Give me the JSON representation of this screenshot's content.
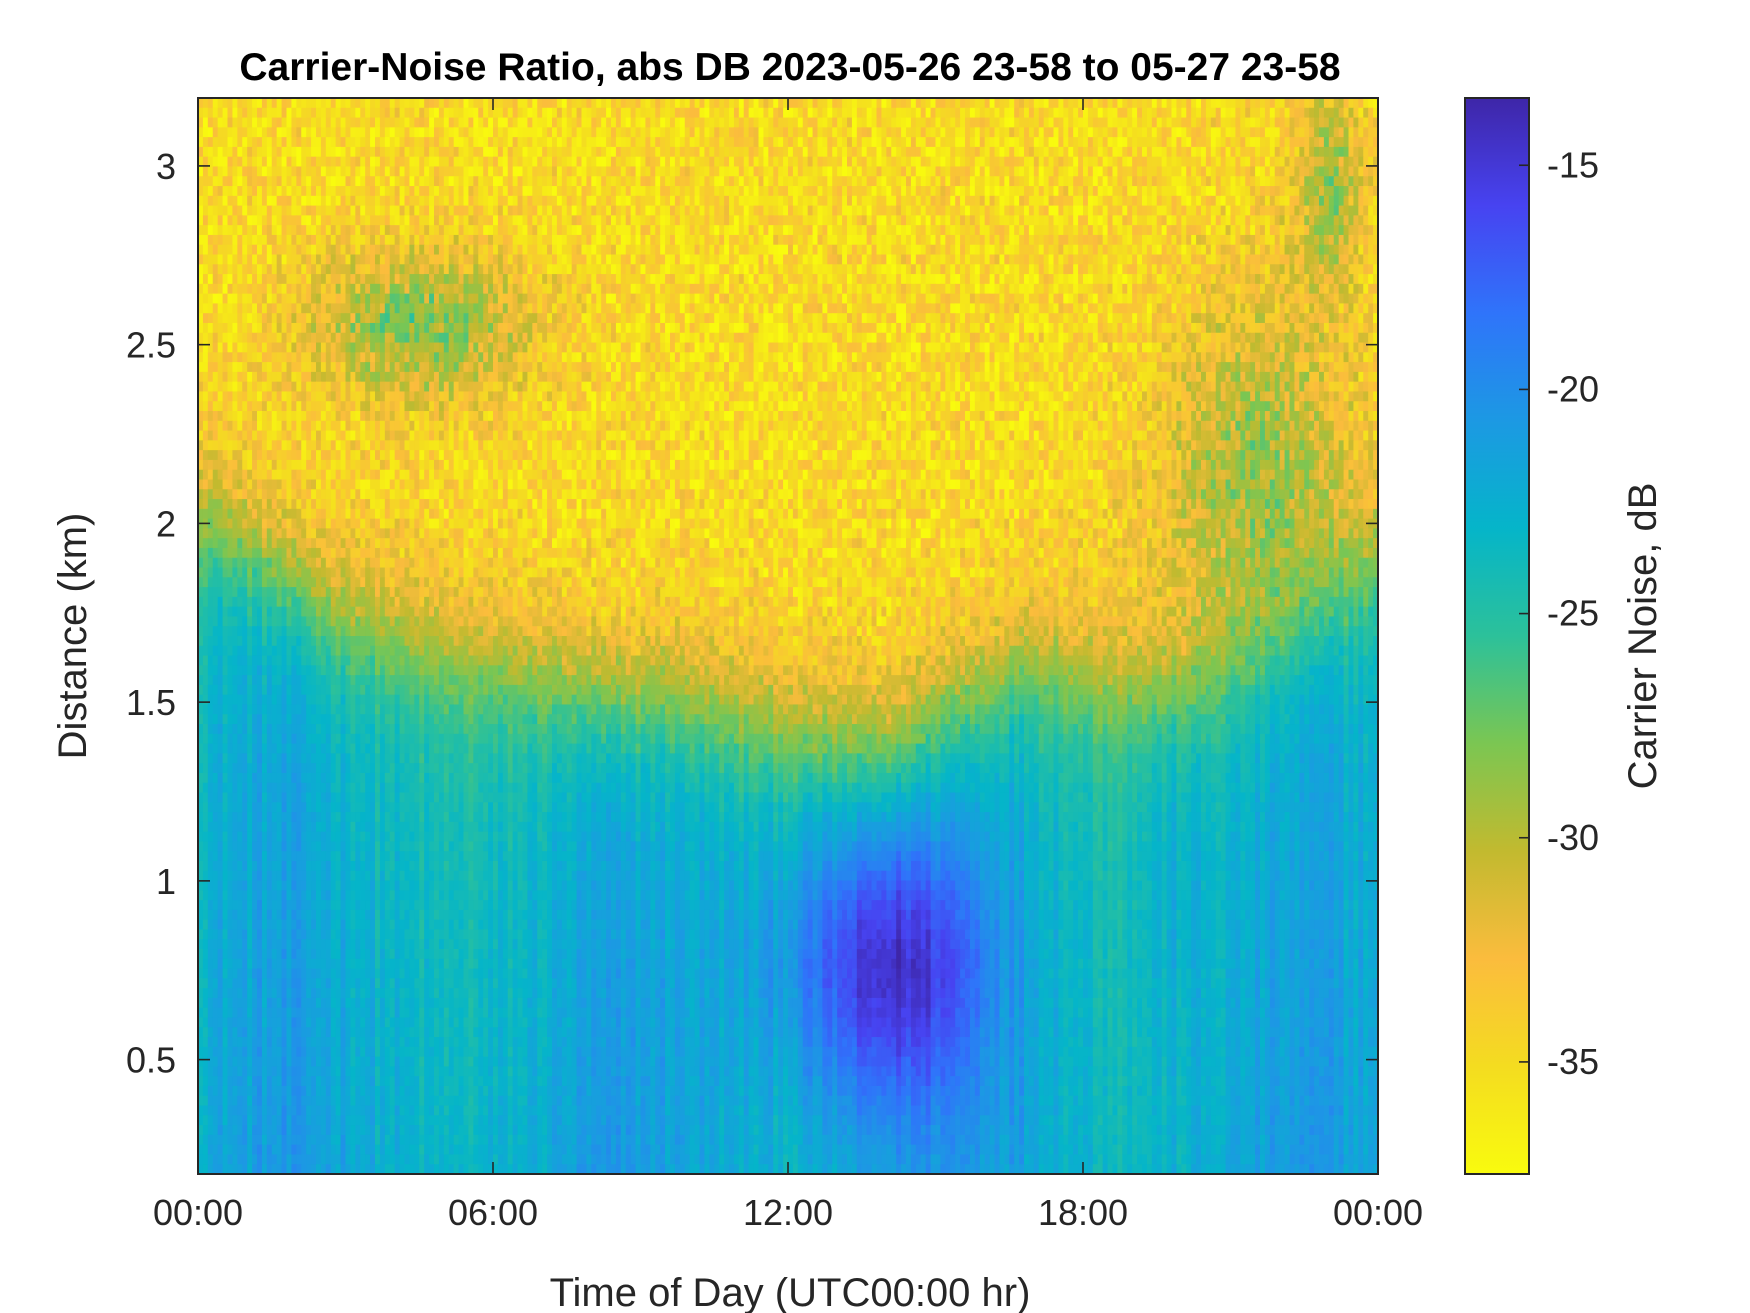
{
  "chart_data": {
    "type": "heatmap",
    "title": "Carrier-Noise Ratio, abs DB 2023-05-26 23-58 to 05-27 23-58",
    "xlabel": "Time of Day (UTC00:00 hr)",
    "ylabel": "Distance (km)",
    "x_ticks": [
      "00:00",
      "06:00",
      "12:00",
      "18:00",
      "00:00"
    ],
    "x_range_hours": [
      0,
      24
    ],
    "y_ticks": [
      0.5,
      1,
      1.5,
      2,
      2.5,
      3
    ],
    "y_tick_labels": [
      "0.5",
      "1",
      "1.5",
      "2",
      "2.5",
      "3"
    ],
    "y_range_km": [
      0.18,
      3.19
    ],
    "colorbar": {
      "label": "Carrier Noise, dB",
      "ticks": [
        -15,
        -20,
        -25,
        -30,
        -35
      ],
      "tick_labels": [
        "-15",
        "-20",
        "-25",
        "-30",
        "-35"
      ],
      "range_db": [
        -37.5,
        -13.5
      ],
      "colormap": "parula",
      "direction": "reversed (top = -13.5 dark blue, bottom = -37.5 yellow)"
    },
    "colormap_stops": [
      "#3e26a8",
      "#4743f1",
      "#2f74fa",
      "#1c99e3",
      "#05b5c9",
      "#2cc19a",
      "#7bc652",
      "#c2ba2f",
      "#fbbc3d",
      "#f4dc20",
      "#f9fb0e"
    ],
    "grid": false,
    "data_description_values": {
      "near_surface_band_db": -22,
      "upper_background_db": -35,
      "transition_height_km": [
        1.5,
        2.0
      ],
      "midday_minimum_db": -14.5,
      "midday_minimum_time_hr": 14.2,
      "midday_minimum_height_km": 0.75
    }
  }
}
